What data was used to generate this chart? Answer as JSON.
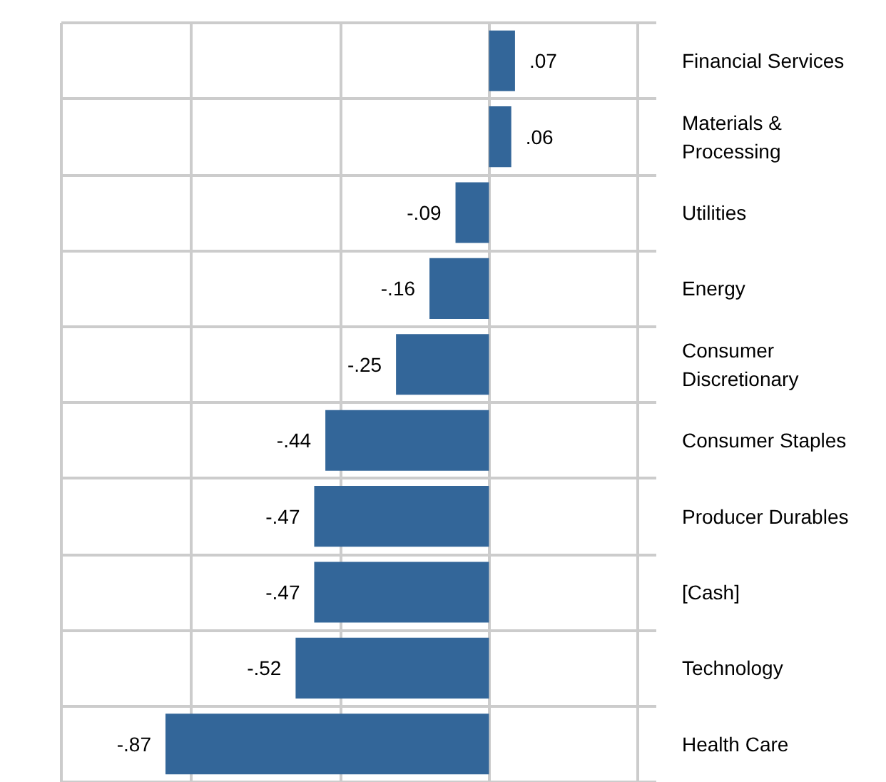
{
  "chart_data": {
    "type": "bar",
    "orientation": "horizontal",
    "categories": [
      "Financial Services",
      "Materials & Processing",
      "Utilities",
      "Energy",
      "Consumer Discretionary",
      "Consumer Staples",
      "Producer Durables",
      "[Cash]",
      "Technology",
      "Health Care"
    ],
    "values": [
      0.07,
      0.06,
      -0.09,
      -0.16,
      -0.25,
      -0.44,
      -0.47,
      -0.47,
      -0.52,
      -0.87
    ],
    "value_labels": [
      ".07",
      ".06",
      "-.09",
      "-.16",
      "-.25",
      "-.44",
      "-.47",
      "-.47",
      "-.52",
      "-.87"
    ],
    "color": "#336699",
    "xlim": [
      -1.15,
      0.45
    ],
    "xticks": [
      {
        "value": -0.8,
        "label": null
      },
      {
        "value": -0.4,
        "label": null
      },
      {
        "value": 0,
        "label": null
      },
      {
        "value": 0.4,
        "label": null
      }
    ],
    "grid": true,
    "tick_labels": "y"
  }
}
